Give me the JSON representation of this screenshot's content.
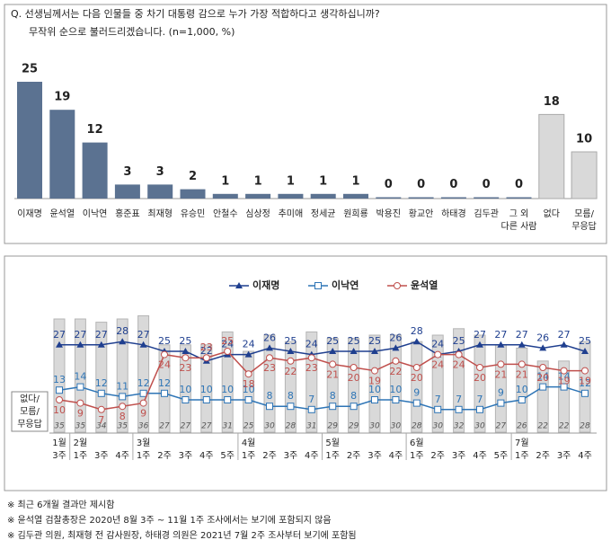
{
  "chart_data": [
    {
      "type": "bar",
      "title": "Q. 선생님께서는 다음 인물들 중 차기 대통령 감으로 누가 가장 적합하다고 생각하십니까?",
      "subtitle": "무작위 순으로 불러드리겠습니다. (n=1,000, %)",
      "categories": [
        "이재명",
        "윤석열",
        "이낙연",
        "홍준표",
        "최재형",
        "유승민",
        "안철수",
        "심상정",
        "추미애",
        "정세균",
        "원희룡",
        "박용진",
        "황교안",
        "하태경",
        "김두관",
        "그 외\n다른 사람",
        "없다",
        "모름/\n무응답"
      ],
      "values": [
        25,
        19,
        12,
        3,
        3,
        2,
        1,
        1,
        1,
        1,
        1,
        0,
        0,
        0,
        0,
        0,
        18,
        10
      ],
      "colors": [
        "#5b7291",
        "#5b7291",
        "#5b7291",
        "#5b7291",
        "#5b7291",
        "#5b7291",
        "#5b7291",
        "#5b7291",
        "#5b7291",
        "#5b7291",
        "#5b7291",
        "#5b7291",
        "#5b7291",
        "#5b7291",
        "#5b7291",
        "#5b7291",
        "#d9d9d9",
        "#d9d9d9"
      ]
    },
    {
      "type": "line",
      "months": [
        "1월",
        "2월",
        null,
        null,
        "3월",
        null,
        null,
        null,
        null,
        "4월",
        null,
        null,
        null,
        "5월",
        null,
        null,
        null,
        "6월",
        null,
        null,
        null,
        null,
        "7월",
        null,
        null,
        null
      ],
      "categories": [
        "3주",
        "1주",
        "3주",
        "4주",
        "1주",
        "2주",
        "3주",
        "4주",
        "5주",
        "1주",
        "2주",
        "3주",
        "4주",
        "1주",
        "2주",
        "3주",
        "4주",
        "1주",
        "2주",
        "3주",
        "4주",
        "5주",
        "1주",
        "2주",
        "3주",
        "4주"
      ],
      "series": [
        {
          "name": "없다/\n모름/\n무응답",
          "kind": "bar",
          "color": "#d9d9d9",
          "values": [
            35,
            35,
            34,
            35,
            36,
            27,
            27,
            27,
            31,
            25,
            30,
            28,
            31,
            29,
            29,
            30,
            30,
            28,
            30,
            32,
            30,
            27,
            26,
            22,
            22,
            28
          ]
        },
        {
          "name": "이재명",
          "marker": "triangle",
          "color": "#1f3f8f",
          "values": [
            27,
            27,
            27,
            28,
            27,
            25,
            25,
            22,
            24,
            24,
            26,
            25,
            24,
            25,
            25,
            25,
            26,
            28,
            24,
            25,
            27,
            27,
            27,
            26,
            27,
            25
          ]
        },
        {
          "name": "이낙연",
          "marker": "square",
          "color": "#2e75b6",
          "values": [
            13,
            14,
            12,
            11,
            12,
            12,
            10,
            10,
            10,
            10,
            8,
            8,
            7,
            8,
            8,
            10,
            10,
            9,
            7,
            7,
            7,
            9,
            10,
            14,
            14,
            12
          ]
        },
        {
          "name": "윤석열",
          "marker": "circle",
          "color": "#c0504d",
          "values": [
            10,
            9,
            7,
            8,
            9,
            24,
            23,
            23,
            25,
            18,
            23,
            22,
            23,
            21,
            20,
            19,
            22,
            20,
            24,
            24,
            20,
            21,
            21,
            20,
            19,
            19
          ]
        }
      ]
    }
  ],
  "notes": [
    "※ 최근 6개월 결과만 제시함",
    "※ 윤석열 검찰총장은 2020년 8월 3주 ~ 11월 1주 조사에서는 보기에 포함되지 않음",
    "※ 김두관 의원, 최재형 전 감사원장, 하태경 의원은 2021년 7월 2주 조사부터 보기에 포함됨"
  ]
}
